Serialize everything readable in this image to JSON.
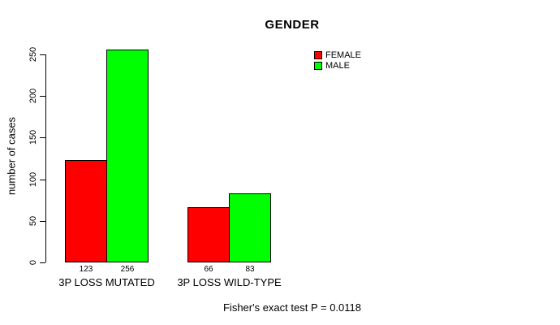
{
  "chart_data": {
    "type": "bar",
    "title": "GENDER",
    "ylabel": "number of cases",
    "xlabel": "",
    "ylim": [
      0,
      250
    ],
    "yticks": [
      0,
      50,
      100,
      150,
      200,
      250
    ],
    "categories": [
      "3P LOSS MUTATED",
      "3P LOSS WILD-TYPE"
    ],
    "series": [
      {
        "name": "FEMALE",
        "color": "#ff0000",
        "values": [
          123,
          66
        ]
      },
      {
        "name": "MALE",
        "color": "#00ff00",
        "values": [
          256,
          83
        ]
      }
    ],
    "bar_value_labels_shown": true,
    "legend": {
      "position": "top-right",
      "entries": [
        "FEMALE",
        "MALE"
      ]
    },
    "footer": "Fisher's exact test P = 0.0118",
    "grid": false,
    "background": "#ffffff",
    "axis_color": "#000000"
  }
}
